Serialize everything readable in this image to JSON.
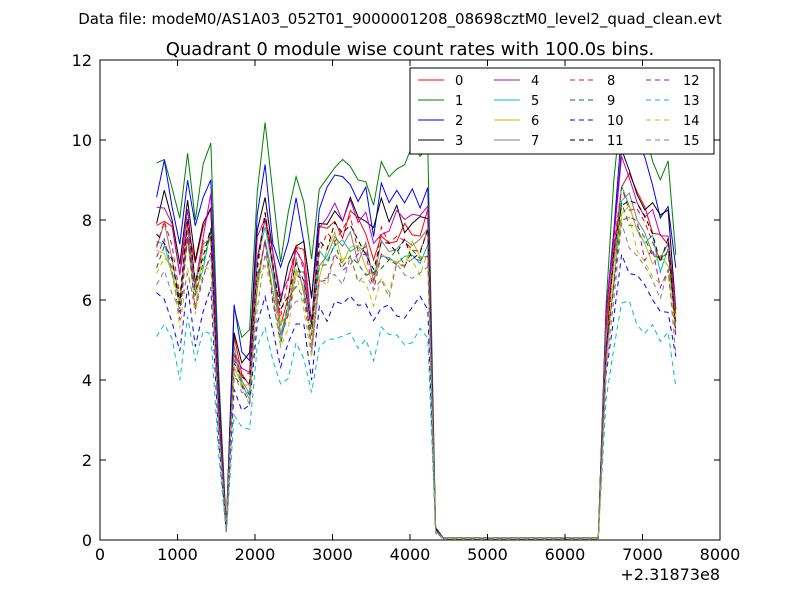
{
  "figure": {
    "suptitle": "Data file: modeM0/AS1A03_052T01_9000001208_08698cztM0_level2_quad_clean.evt"
  },
  "chart_data": {
    "type": "line",
    "title": "Quadrant 0 module wise count rates with 100.0s bins.",
    "xlabel": "",
    "ylabel": "",
    "xlim": [
      0,
      8000
    ],
    "ylim": [
      0,
      12
    ],
    "x_offset_label": "+2.31873e8",
    "xticks": [
      0,
      1000,
      2000,
      3000,
      4000,
      5000,
      6000,
      7000,
      8000
    ],
    "yticks": [
      0,
      2,
      4,
      6,
      8,
      10,
      12
    ],
    "grid": false,
    "legend": {
      "placement": "top-right",
      "columns": 4
    },
    "x": [
      730,
      830,
      930,
      1030,
      1130,
      1230,
      1330,
      1430,
      1530,
      1630,
      1730,
      1830,
      1930,
      2030,
      2130,
      2230,
      2330,
      2430,
      2530,
      2630,
      2730,
      2830,
      2930,
      3030,
      3130,
      3230,
      3330,
      3430,
      3530,
      3630,
      3730,
      3830,
      3930,
      4030,
      4130,
      4230,
      4330,
      4430,
      4530,
      4630,
      4730,
      4830,
      4930,
      5030,
      5130,
      5230,
      5330,
      5430,
      5530,
      5630,
      5730,
      5830,
      5930,
      6030,
      6130,
      6230,
      6330,
      6430,
      6530,
      6630,
      6730,
      6830,
      6930,
      7030,
      7130,
      7230,
      7330,
      7430
    ],
    "series": [
      {
        "name": "0",
        "color": "#ff0000",
        "dash": "solid",
        "scale": 0.87,
        "seed": 1
      },
      {
        "name": "1",
        "color": "#008000",
        "dash": "solid",
        "scale": 1.06,
        "seed": 2
      },
      {
        "name": "2",
        "color": "#0000ff",
        "dash": "solid",
        "scale": 0.98,
        "seed": 3
      },
      {
        "name": "3",
        "color": "#000000",
        "dash": "solid",
        "scale": 0.92,
        "seed": 4
      },
      {
        "name": "4",
        "color": "#bf00bf",
        "dash": "solid",
        "scale": 0.89,
        "seed": 5
      },
      {
        "name": "5",
        "color": "#00bfbf",
        "dash": "solid",
        "scale": 0.81,
        "seed": 6
      },
      {
        "name": "6",
        "color": "#bfbf00",
        "dash": "solid",
        "scale": 0.8,
        "seed": 7
      },
      {
        "name": "7",
        "color": "#808080",
        "dash": "solid",
        "scale": 0.82,
        "seed": 8
      },
      {
        "name": "8",
        "color": "#ff0000",
        "dash": "dashed",
        "scale": 0.84,
        "seed": 9
      },
      {
        "name": "9",
        "color": "#008000",
        "dash": "dashed",
        "scale": 0.79,
        "seed": 10
      },
      {
        "name": "10",
        "color": "#0000ff",
        "dash": "dashed",
        "scale": 0.66,
        "seed": 11
      },
      {
        "name": "11",
        "color": "#000000",
        "dash": "dashed",
        "scale": 0.83,
        "seed": 12
      },
      {
        "name": "12",
        "color": "#bf00bf",
        "dash": "dashed",
        "scale": 0.78,
        "seed": 13
      },
      {
        "name": "13",
        "color": "#00bfbf",
        "dash": "dashed",
        "scale": 0.57,
        "seed": 14
      },
      {
        "name": "14",
        "color": "#bfbf00",
        "dash": "dashed",
        "scale": 0.76,
        "seed": 15
      },
      {
        "name": "15",
        "color": "#808080",
        "dash": "dashed",
        "scale": 0.74,
        "seed": 16
      }
    ],
    "base_profile": [
      9.0,
      9.3,
      8.6,
      7.4,
      9.4,
      7.6,
      8.8,
      9.3,
      4.0,
      0.3,
      5.6,
      4.6,
      4.7,
      8.2,
      9.4,
      8.0,
      6.6,
      7.4,
      8.4,
      7.9,
      6.4,
      8.6,
      8.7,
      9.2,
      9.0,
      9.2,
      8.8,
      8.8,
      8.1,
      8.9,
      8.6,
      8.9,
      8.8,
      8.9,
      8.9,
      9.1,
      0.3,
      0.05,
      0.05,
      0.05,
      0.05,
      0.05,
      0.05,
      0.05,
      0.05,
      0.05,
      0.05,
      0.05,
      0.05,
      0.05,
      0.05,
      0.05,
      0.05,
      0.05,
      0.05,
      0.05,
      0.05,
      0.05,
      6.0,
      8.3,
      10.5,
      10.2,
      9.8,
      9.4,
      9.0,
      8.5,
      8.8,
      6.6
    ]
  }
}
